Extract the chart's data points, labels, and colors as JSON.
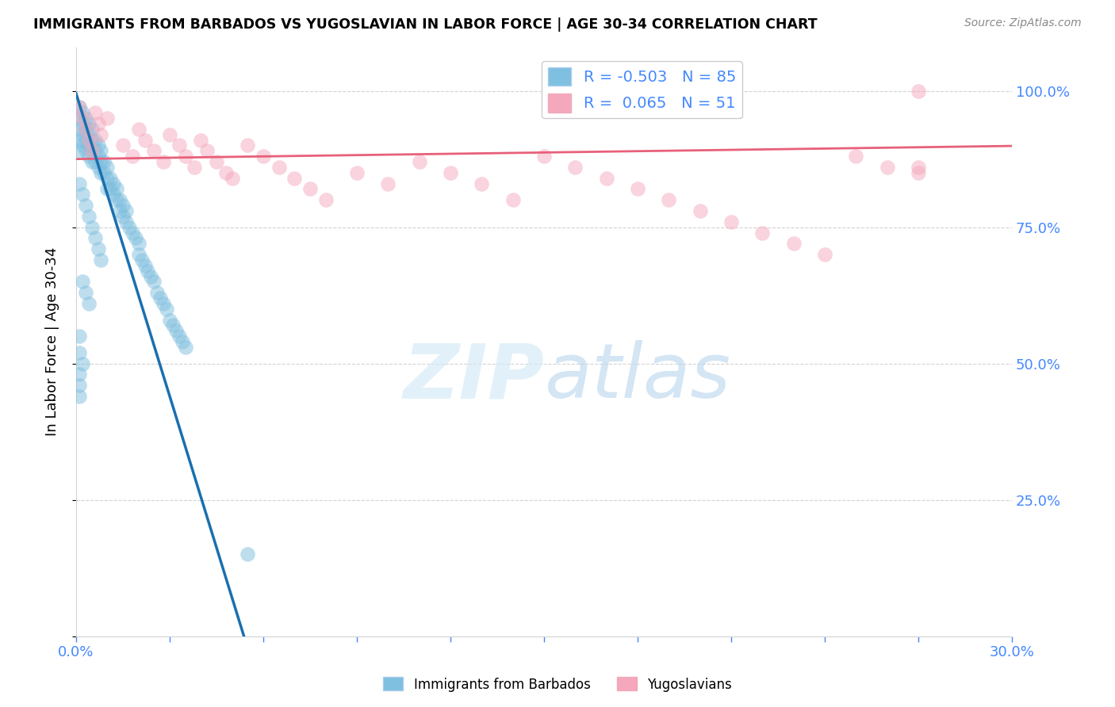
{
  "title": "IMMIGRANTS FROM BARBADOS VS YUGOSLAVIAN IN LABOR FORCE | AGE 30-34 CORRELATION CHART",
  "source": "Source: ZipAtlas.com",
  "ylabel": "In Labor Force | Age 30-34",
  "legend_R_barbados": "-0.503",
  "legend_N_barbados": "85",
  "legend_R_yugoslavian": "0.065",
  "legend_N_yugoslavian": "51",
  "blue_color": "#7fbfdf",
  "pink_color": "#f5a8bc",
  "blue_line_color": "#1a6faf",
  "pink_line_color": "#e8607a",
  "dash_color": "#c0c0c0",
  "grid_color": "#d3d3d3",
  "right_tick_color": "#4488ff",
  "xlim": [
    0.0,
    0.3
  ],
  "ylim": [
    0.0,
    1.08
  ],
  "ytick_right": [
    1.0,
    0.75,
    0.5,
    0.25
  ],
  "ytick_right_labels": [
    "100.0%",
    "75.0%",
    "50.0%",
    "25.0%"
  ],
  "xtick_vals": [
    0.0,
    0.03,
    0.06,
    0.09,
    0.12,
    0.15,
    0.18,
    0.21,
    0.24,
    0.27,
    0.3
  ],
  "barbados_x": [
    0.001,
    0.001,
    0.001,
    0.001,
    0.001,
    0.002,
    0.002,
    0.002,
    0.002,
    0.003,
    0.003,
    0.003,
    0.003,
    0.004,
    0.004,
    0.004,
    0.004,
    0.005,
    0.005,
    0.005,
    0.005,
    0.006,
    0.006,
    0.006,
    0.007,
    0.007,
    0.007,
    0.008,
    0.008,
    0.008,
    0.009,
    0.009,
    0.01,
    0.01,
    0.01,
    0.011,
    0.011,
    0.012,
    0.012,
    0.013,
    0.013,
    0.014,
    0.014,
    0.015,
    0.015,
    0.016,
    0.016,
    0.017,
    0.018,
    0.019,
    0.02,
    0.02,
    0.021,
    0.022,
    0.023,
    0.024,
    0.025,
    0.026,
    0.027,
    0.028,
    0.029,
    0.03,
    0.031,
    0.032,
    0.033,
    0.034,
    0.035,
    0.001,
    0.002,
    0.003,
    0.004,
    0.005,
    0.006,
    0.007,
    0.008,
    0.002,
    0.003,
    0.004,
    0.001,
    0.001,
    0.002,
    0.055,
    0.001,
    0.001,
    0.001
  ],
  "barbados_y": [
    0.97,
    0.95,
    0.93,
    0.91,
    0.89,
    0.96,
    0.94,
    0.92,
    0.9,
    0.95,
    0.93,
    0.91,
    0.89,
    0.94,
    0.92,
    0.9,
    0.88,
    0.93,
    0.91,
    0.89,
    0.87,
    0.91,
    0.89,
    0.87,
    0.9,
    0.88,
    0.86,
    0.89,
    0.87,
    0.85,
    0.87,
    0.85,
    0.86,
    0.84,
    0.82,
    0.84,
    0.82,
    0.83,
    0.81,
    0.82,
    0.8,
    0.8,
    0.78,
    0.79,
    0.77,
    0.78,
    0.76,
    0.75,
    0.74,
    0.73,
    0.72,
    0.7,
    0.69,
    0.68,
    0.67,
    0.66,
    0.65,
    0.63,
    0.62,
    0.61,
    0.6,
    0.58,
    0.57,
    0.56,
    0.55,
    0.54,
    0.53,
    0.83,
    0.81,
    0.79,
    0.77,
    0.75,
    0.73,
    0.71,
    0.69,
    0.65,
    0.63,
    0.61,
    0.55,
    0.52,
    0.5,
    0.15,
    0.48,
    0.46,
    0.44
  ],
  "yugoslav_x": [
    0.001,
    0.002,
    0.003,
    0.004,
    0.005,
    0.006,
    0.007,
    0.008,
    0.01,
    0.015,
    0.018,
    0.02,
    0.022,
    0.025,
    0.028,
    0.03,
    0.033,
    0.035,
    0.038,
    0.04,
    0.042,
    0.045,
    0.048,
    0.05,
    0.055,
    0.06,
    0.065,
    0.07,
    0.075,
    0.08,
    0.09,
    0.1,
    0.11,
    0.12,
    0.13,
    0.14,
    0.15,
    0.16,
    0.17,
    0.18,
    0.19,
    0.2,
    0.21,
    0.22,
    0.23,
    0.24,
    0.25,
    0.26,
    0.27,
    0.27,
    0.27
  ],
  "yugoslav_y": [
    0.97,
    0.95,
    0.93,
    0.91,
    0.89,
    0.96,
    0.94,
    0.92,
    0.95,
    0.9,
    0.88,
    0.93,
    0.91,
    0.89,
    0.87,
    0.92,
    0.9,
    0.88,
    0.86,
    0.91,
    0.89,
    0.87,
    0.85,
    0.84,
    0.9,
    0.88,
    0.86,
    0.84,
    0.82,
    0.8,
    0.85,
    0.83,
    0.87,
    0.85,
    0.83,
    0.8,
    0.88,
    0.86,
    0.84,
    0.82,
    0.8,
    0.78,
    0.76,
    0.74,
    0.72,
    0.7,
    0.88,
    0.86,
    1.0,
    0.86,
    0.85
  ]
}
